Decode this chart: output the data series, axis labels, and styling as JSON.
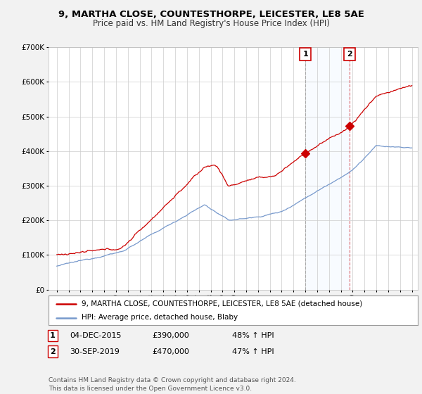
{
  "title": "9, MARTHA CLOSE, COUNTESTHORPE, LEICESTER, LE8 5AE",
  "subtitle": "Price paid vs. HM Land Registry's House Price Index (HPI)",
  "ylim": [
    0,
    700000
  ],
  "yticks": [
    0,
    100000,
    200000,
    300000,
    400000,
    500000,
    600000,
    700000
  ],
  "ytick_labels": [
    "£0",
    "£100K",
    "£200K",
    "£300K",
    "£400K",
    "£500K",
    "£600K",
    "£700K"
  ],
  "background_color": "#f2f2f2",
  "plot_bg_color": "#ffffff",
  "grid_color": "#cccccc",
  "red_color": "#cc0000",
  "blue_color": "#7799cc",
  "shade_color": "#ddeeff",
  "marker1_x": 2016.0,
  "marker2_x": 2019.75,
  "legend_entries": [
    "9, MARTHA CLOSE, COUNTESTHORPE, LEICESTER, LE8 5AE (detached house)",
    "HPI: Average price, detached house, Blaby"
  ],
  "table_rows": [
    [
      "1",
      "04-DEC-2015",
      "£390,000",
      "48% ↑ HPI"
    ],
    [
      "2",
      "30-SEP-2019",
      "£470,000",
      "47% ↑ HPI"
    ]
  ],
  "footer": "Contains HM Land Registry data © Crown copyright and database right 2024.\nThis data is licensed under the Open Government Licence v3.0.",
  "title_fontsize": 9.5,
  "subtitle_fontsize": 8.5,
  "tick_fontsize": 7.5,
  "legend_fontsize": 7.5,
  "table_fontsize": 8,
  "footer_fontsize": 6.5
}
